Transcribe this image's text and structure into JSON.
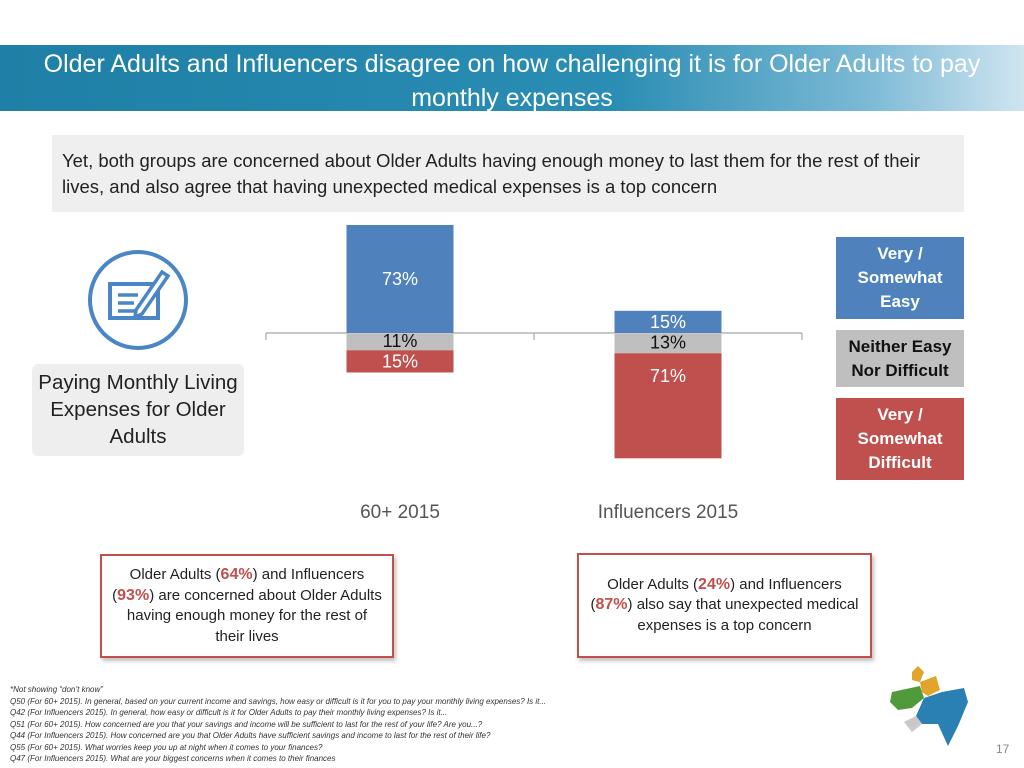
{
  "title": "Older Adults and Influencers disagree on how challenging it is for Older Adults to pay monthly expenses",
  "subtitle": "Yet, both groups are concerned about Older Adults having enough money to last them for the rest of their lives, and also agree that having unexpected medical expenses is a top concern",
  "category_label": "Paying Monthly Living Expenses for Older Adults",
  "icon": "document-pen-icon",
  "legend": {
    "easy": "Very / Somewhat Easy",
    "neutral": "Neither Easy Nor Difficult",
    "difficult": "Very / Somewhat Difficult"
  },
  "colors": {
    "easy": "#4f81bd",
    "neutral": "#bfbfbf",
    "difficult": "#c0504d",
    "accent": "#1f7fa6"
  },
  "chart_data": {
    "type": "bar",
    "stacking": "diverging",
    "categories": [
      "60+ 2015",
      "Influencers 2015"
    ],
    "series": [
      {
        "name": "Very / Somewhat Easy",
        "values": [
          73,
          15
        ],
        "labels": [
          "73%",
          "15%"
        ]
      },
      {
        "name": "Neither Easy Nor Difficult",
        "values": [
          11,
          13
        ],
        "labels": [
          "11%",
          "13%"
        ]
      },
      {
        "name": "Very / Somewhat Difficult",
        "values": [
          15,
          71
        ],
        "labels": [
          "15%",
          "71%"
        ]
      }
    ],
    "legend_position": "right",
    "grid": false
  },
  "callouts": [
    {
      "before": "Older Adults (",
      "hl1": "64%",
      "mid": ") and Influencers (",
      "hl2": "93%",
      "after": ") are concerned about Older Adults having enough money for the rest of their lives"
    },
    {
      "before": "Older Adults (",
      "hl1": "24%",
      "mid": ") and Influencers (",
      "hl2": "87%",
      "after": ") also say that unexpected medical expenses is a top concern"
    }
  ],
  "footnotes": [
    "*Not showing “don’t know”",
    "Q50 (For 60+ 2015). In general, based on your current income and savings, how easy or difficult is it for you to pay your monthly living expenses? Is it...",
    "Q42 (For Influencers 2015). In general, how easy or difficult is it for Older Adults to pay their monthly living expenses? Is it...",
    "Q51 (For 60+ 2015). How concerned are you that your savings and income will be sufficient to last for the rest of your life? Are you...?",
    "Q44 (For Influencers 2015). How concerned are you that Older Adults have sufficient savings and income to last for the rest of their life?",
    "Q55 (For 60+ 2015). What worries keep you up at night when it comes to your finances?",
    "Q47 (For Influencers 2015). What are your biggest concerns when it comes to their finances"
  ],
  "page_number": "17",
  "logo_icon": "us-map-logo-icon"
}
